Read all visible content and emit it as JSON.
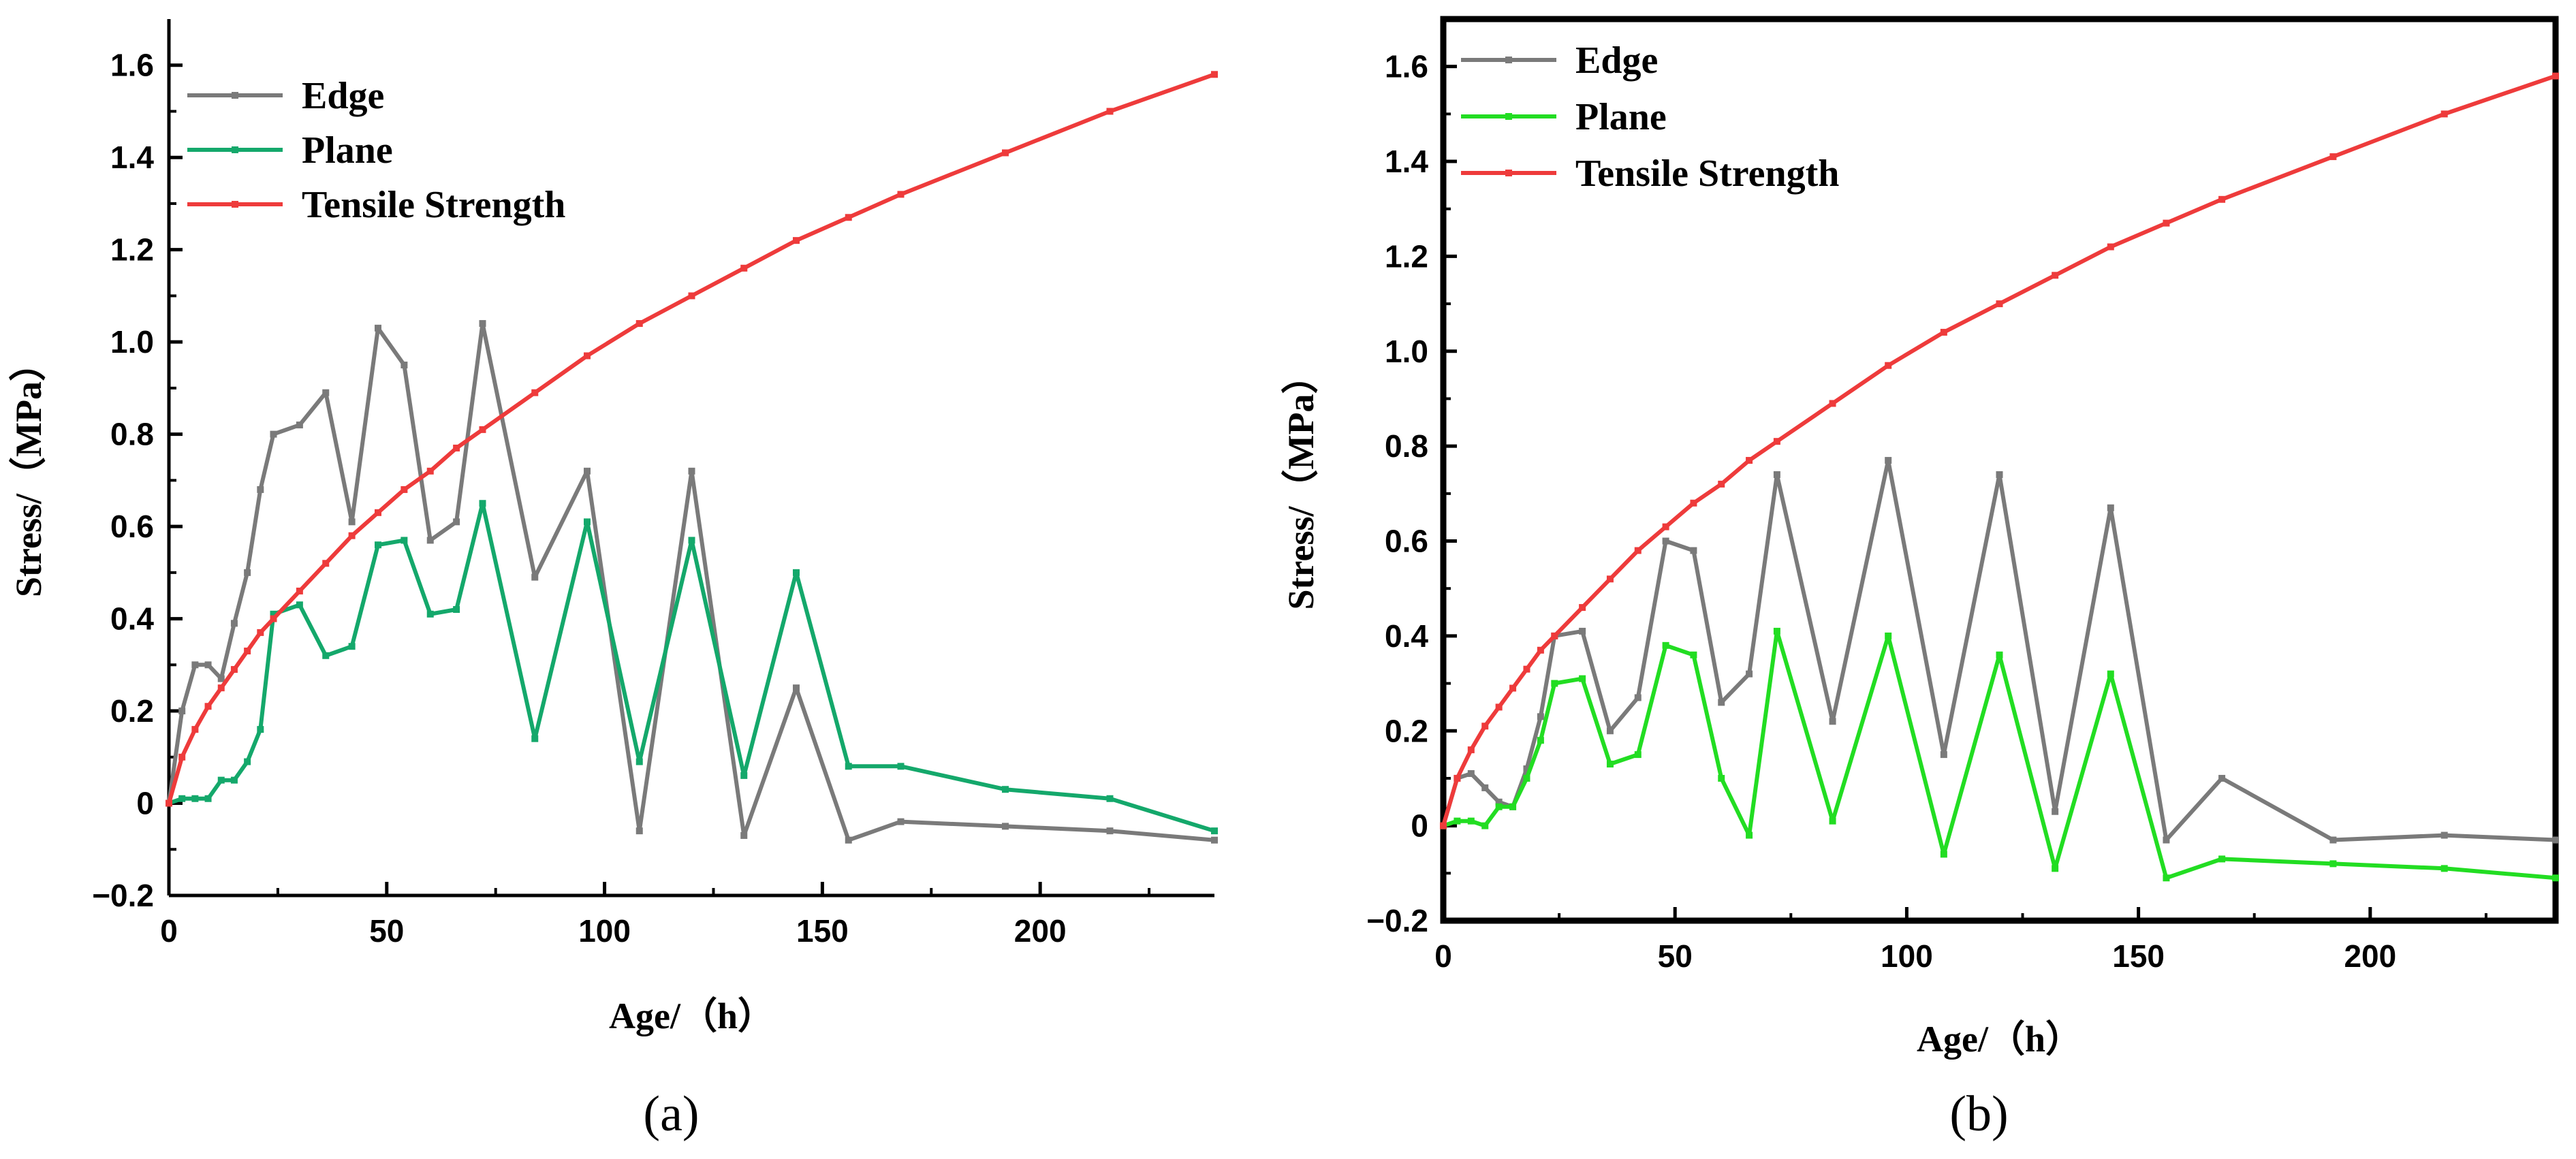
{
  "chart_data": [
    {
      "type": "line",
      "panel_label": "(a)",
      "xlabel": "Age/（h）",
      "ylabel": "Stress/（MPa）",
      "xlim": [
        0,
        240
      ],
      "ylim": [
        -0.2,
        1.7
      ],
      "xticks": [
        0,
        50,
        100,
        150,
        200
      ],
      "xtick_labels": [
        "0",
        "50",
        "100",
        "150",
        "200"
      ],
      "yticks": [
        -0.2,
        0,
        0.2,
        0.4,
        0.6,
        0.8,
        1.0,
        1.2,
        1.4,
        1.6
      ],
      "ytick_labels": [
        "−0.2",
        "0",
        "0.2",
        "0.4",
        "0.6",
        "0.8",
        "1.0",
        "1.2",
        "1.4",
        "1.6"
      ],
      "legend_position": "top-left",
      "series": [
        {
          "name": "Edge",
          "color": "#7a7a7a",
          "x": [
            0,
            3,
            6,
            9,
            12,
            15,
            18,
            21,
            24,
            30,
            36,
            42,
            48,
            54,
            60,
            66,
            72,
            84,
            96,
            108,
            120,
            132,
            144,
            156,
            168,
            192,
            216,
            240
          ],
          "y": [
            0.0,
            0.2,
            0.3,
            0.3,
            0.27,
            0.39,
            0.5,
            0.68,
            0.8,
            0.82,
            0.89,
            0.61,
            1.03,
            0.95,
            0.57,
            0.61,
            1.04,
            0.49,
            0.72,
            -0.06,
            0.72,
            -0.07,
            0.25,
            -0.08,
            -0.04,
            -0.05,
            -0.06,
            -0.08
          ]
        },
        {
          "name": "Plane",
          "color": "#14a86b",
          "x": [
            0,
            3,
            6,
            9,
            12,
            15,
            18,
            21,
            24,
            30,
            36,
            42,
            48,
            54,
            60,
            66,
            72,
            84,
            96,
            108,
            120,
            132,
            144,
            156,
            168,
            192,
            216,
            240
          ],
          "y": [
            0.0,
            0.01,
            0.01,
            0.01,
            0.05,
            0.05,
            0.09,
            0.16,
            0.41,
            0.43,
            0.32,
            0.34,
            0.56,
            0.57,
            0.41,
            0.42,
            0.65,
            0.14,
            0.61,
            0.09,
            0.57,
            0.06,
            0.5,
            0.08,
            0.08,
            0.03,
            0.01,
            -0.06
          ]
        },
        {
          "name": "Tensile Strength",
          "color": "#ee3b3b",
          "x": [
            0,
            3,
            6,
            9,
            12,
            15,
            18,
            21,
            24,
            30,
            36,
            42,
            48,
            54,
            60,
            66,
            72,
            84,
            96,
            108,
            120,
            132,
            144,
            156,
            168,
            192,
            216,
            240
          ],
          "y": [
            0.0,
            0.1,
            0.16,
            0.21,
            0.25,
            0.29,
            0.33,
            0.37,
            0.4,
            0.46,
            0.52,
            0.58,
            0.63,
            0.68,
            0.72,
            0.77,
            0.81,
            0.89,
            0.97,
            1.04,
            1.1,
            1.16,
            1.22,
            1.27,
            1.32,
            1.41,
            1.5,
            1.58
          ]
        }
      ]
    },
    {
      "type": "line",
      "panel_label": "(b)",
      "xlabel": "Age/（h）",
      "ylabel": "Stress/（MPa）",
      "xlim": [
        0,
        240
      ],
      "ylim": [
        -0.2,
        1.7
      ],
      "xticks": [
        0,
        50,
        100,
        150,
        200
      ],
      "xtick_labels": [
        "0",
        "50",
        "100",
        "150",
        "200"
      ],
      "yticks": [
        -0.2,
        0,
        0.2,
        0.4,
        0.6,
        0.8,
        1.0,
        1.2,
        1.4,
        1.6
      ],
      "ytick_labels": [
        "−0.2",
        "0",
        "0.2",
        "0.4",
        "0.6",
        "0.8",
        "1.0",
        "1.2",
        "1.4",
        "1.6"
      ],
      "legend_position": "top-left",
      "series": [
        {
          "name": "Edge",
          "color": "#7a7a7a",
          "x": [
            0,
            3,
            6,
            9,
            12,
            15,
            18,
            21,
            24,
            30,
            36,
            42,
            48,
            54,
            60,
            66,
            72,
            84,
            96,
            108,
            120,
            132,
            144,
            156,
            168,
            192,
            216,
            240
          ],
          "y": [
            0.0,
            0.1,
            0.11,
            0.08,
            0.05,
            0.04,
            0.12,
            0.23,
            0.4,
            0.41,
            0.2,
            0.27,
            0.6,
            0.58,
            0.26,
            0.32,
            0.74,
            0.22,
            0.77,
            0.15,
            0.74,
            0.03,
            0.67,
            -0.03,
            0.1,
            -0.03,
            -0.02,
            -0.03
          ]
        },
        {
          "name": "Plane",
          "color": "#22dd22",
          "x": [
            0,
            3,
            6,
            9,
            12,
            15,
            18,
            21,
            24,
            30,
            36,
            42,
            48,
            54,
            60,
            66,
            72,
            84,
            96,
            108,
            120,
            132,
            144,
            156,
            168,
            192,
            216,
            240
          ],
          "y": [
            0.0,
            0.01,
            0.01,
            0.0,
            0.04,
            0.04,
            0.1,
            0.18,
            0.3,
            0.31,
            0.13,
            0.15,
            0.38,
            0.36,
            0.1,
            -0.02,
            0.41,
            0.01,
            0.4,
            -0.06,
            0.36,
            -0.09,
            0.32,
            -0.11,
            -0.07,
            -0.08,
            -0.09,
            -0.11
          ]
        },
        {
          "name": "Tensile Strength",
          "color": "#ee3b3b",
          "x": [
            0,
            3,
            6,
            9,
            12,
            15,
            18,
            21,
            24,
            30,
            36,
            42,
            48,
            54,
            60,
            66,
            72,
            84,
            96,
            108,
            120,
            132,
            144,
            156,
            168,
            192,
            216,
            240
          ],
          "y": [
            0.0,
            0.1,
            0.16,
            0.21,
            0.25,
            0.29,
            0.33,
            0.37,
            0.4,
            0.46,
            0.52,
            0.58,
            0.63,
            0.68,
            0.72,
            0.77,
            0.81,
            0.89,
            0.97,
            1.04,
            1.1,
            1.16,
            1.22,
            1.27,
            1.32,
            1.41,
            1.5,
            1.58
          ]
        }
      ]
    }
  ]
}
